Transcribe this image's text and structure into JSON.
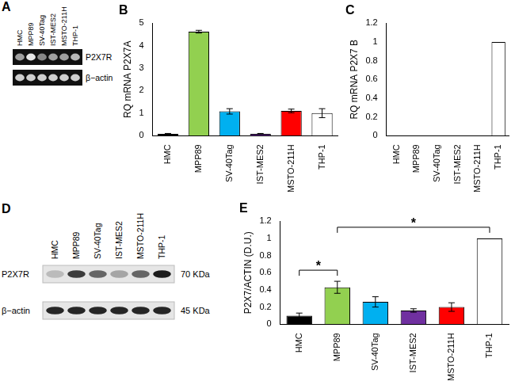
{
  "chart_data": [
    {
      "type": "bar",
      "title": "B",
      "categories": [
        "HMC",
        "MPP89",
        "SV-40Tag",
        "IST-MES2",
        "MSTO-211H",
        "THP-1"
      ],
      "values": [
        0.08,
        4.62,
        1.08,
        0.08,
        1.1,
        1.0
      ],
      "errors": [
        0.02,
        0.06,
        0.12,
        0.02,
        0.08,
        0.2
      ],
      "colors": [
        "#000000",
        "#92d050",
        "#00b0f0",
        "#7030a0",
        "#ff0000",
        "#ffffff"
      ],
      "y_label": "RQ mRNA P2X7A",
      "ylim": [
        0,
        5
      ],
      "yticks": [
        0,
        1,
        2,
        3,
        4,
        5
      ],
      "grid": false
    },
    {
      "type": "bar",
      "title": "C",
      "categories": [
        "HMC",
        "MPP89",
        "SV-40Tag",
        "IST-MES2",
        "MSTO-211H",
        "THP-1"
      ],
      "values": [
        0,
        0,
        0,
        0,
        0,
        1
      ],
      "colors": [
        "#000000",
        "#92d050",
        "#00b0f0",
        "#7030a0",
        "#ff0000",
        "#ffffff"
      ],
      "y_label": "RQ mRNA P2X7 B",
      "ylim": [
        0,
        1.2
      ],
      "yticks": [
        0,
        0.2,
        0.4,
        0.6,
        0.8,
        1,
        1.2
      ],
      "grid": false
    },
    {
      "type": "bar",
      "title": "E",
      "categories": [
        "HMC",
        "MPP89",
        "SV-40Tag",
        "IST-MES2",
        "MSTO-211H",
        "THP-1"
      ],
      "values": [
        0.1,
        0.43,
        0.26,
        0.16,
        0.2,
        1
      ],
      "errors": [
        0.03,
        0.07,
        0.06,
        0.02,
        0.05,
        null
      ],
      "colors": [
        "#000000",
        "#92d050",
        "#00b0f0",
        "#7030a0",
        "#ff0000",
        "#ffffff"
      ],
      "y_label": "P2X7/ACTIN (D.U.)",
      "ylim": [
        0,
        1.2
      ],
      "yticks": [
        0,
        0.2,
        0.4,
        0.6,
        0.8,
        1,
        1.2
      ],
      "grid": false,
      "annotations": [
        {
          "from": "HMC",
          "to": "MPP89",
          "text": "*"
        },
        {
          "from": "MPP89",
          "to": "THP-1",
          "text": "*"
        }
      ]
    }
  ],
  "blots": [
    {
      "title": "A",
      "style": "gel",
      "lanes": [
        "HMC",
        "MPP89",
        "SV-40Tag",
        "IST-MES2",
        "MSTO-211H",
        "THP-1"
      ],
      "rows": [
        {
          "label": "P2X7R",
          "intensity": [
            0.6,
            0.9,
            0.5,
            0.6,
            0.6,
            0.7
          ]
        },
        {
          "label": "β−actin",
          "intensity": [
            0.8,
            0.8,
            0.8,
            0.8,
            0.8,
            0.8
          ]
        }
      ]
    },
    {
      "title": "D",
      "style": "western",
      "lanes": [
        "HMC",
        "MPP89",
        "SV-40Tag",
        "IST-MES2",
        "MSTO-211H",
        "THP-1"
      ],
      "rows": [
        {
          "label": "P2X7R",
          "size": "70 KDa",
          "intensity": [
            0.2,
            0.8,
            0.6,
            0.3,
            0.6,
            0.95
          ]
        },
        {
          "label": "β−actin",
          "size": "45 KDa",
          "intensity": [
            0.9,
            0.9,
            0.9,
            0.9,
            0.9,
            0.9
          ]
        }
      ]
    }
  ]
}
